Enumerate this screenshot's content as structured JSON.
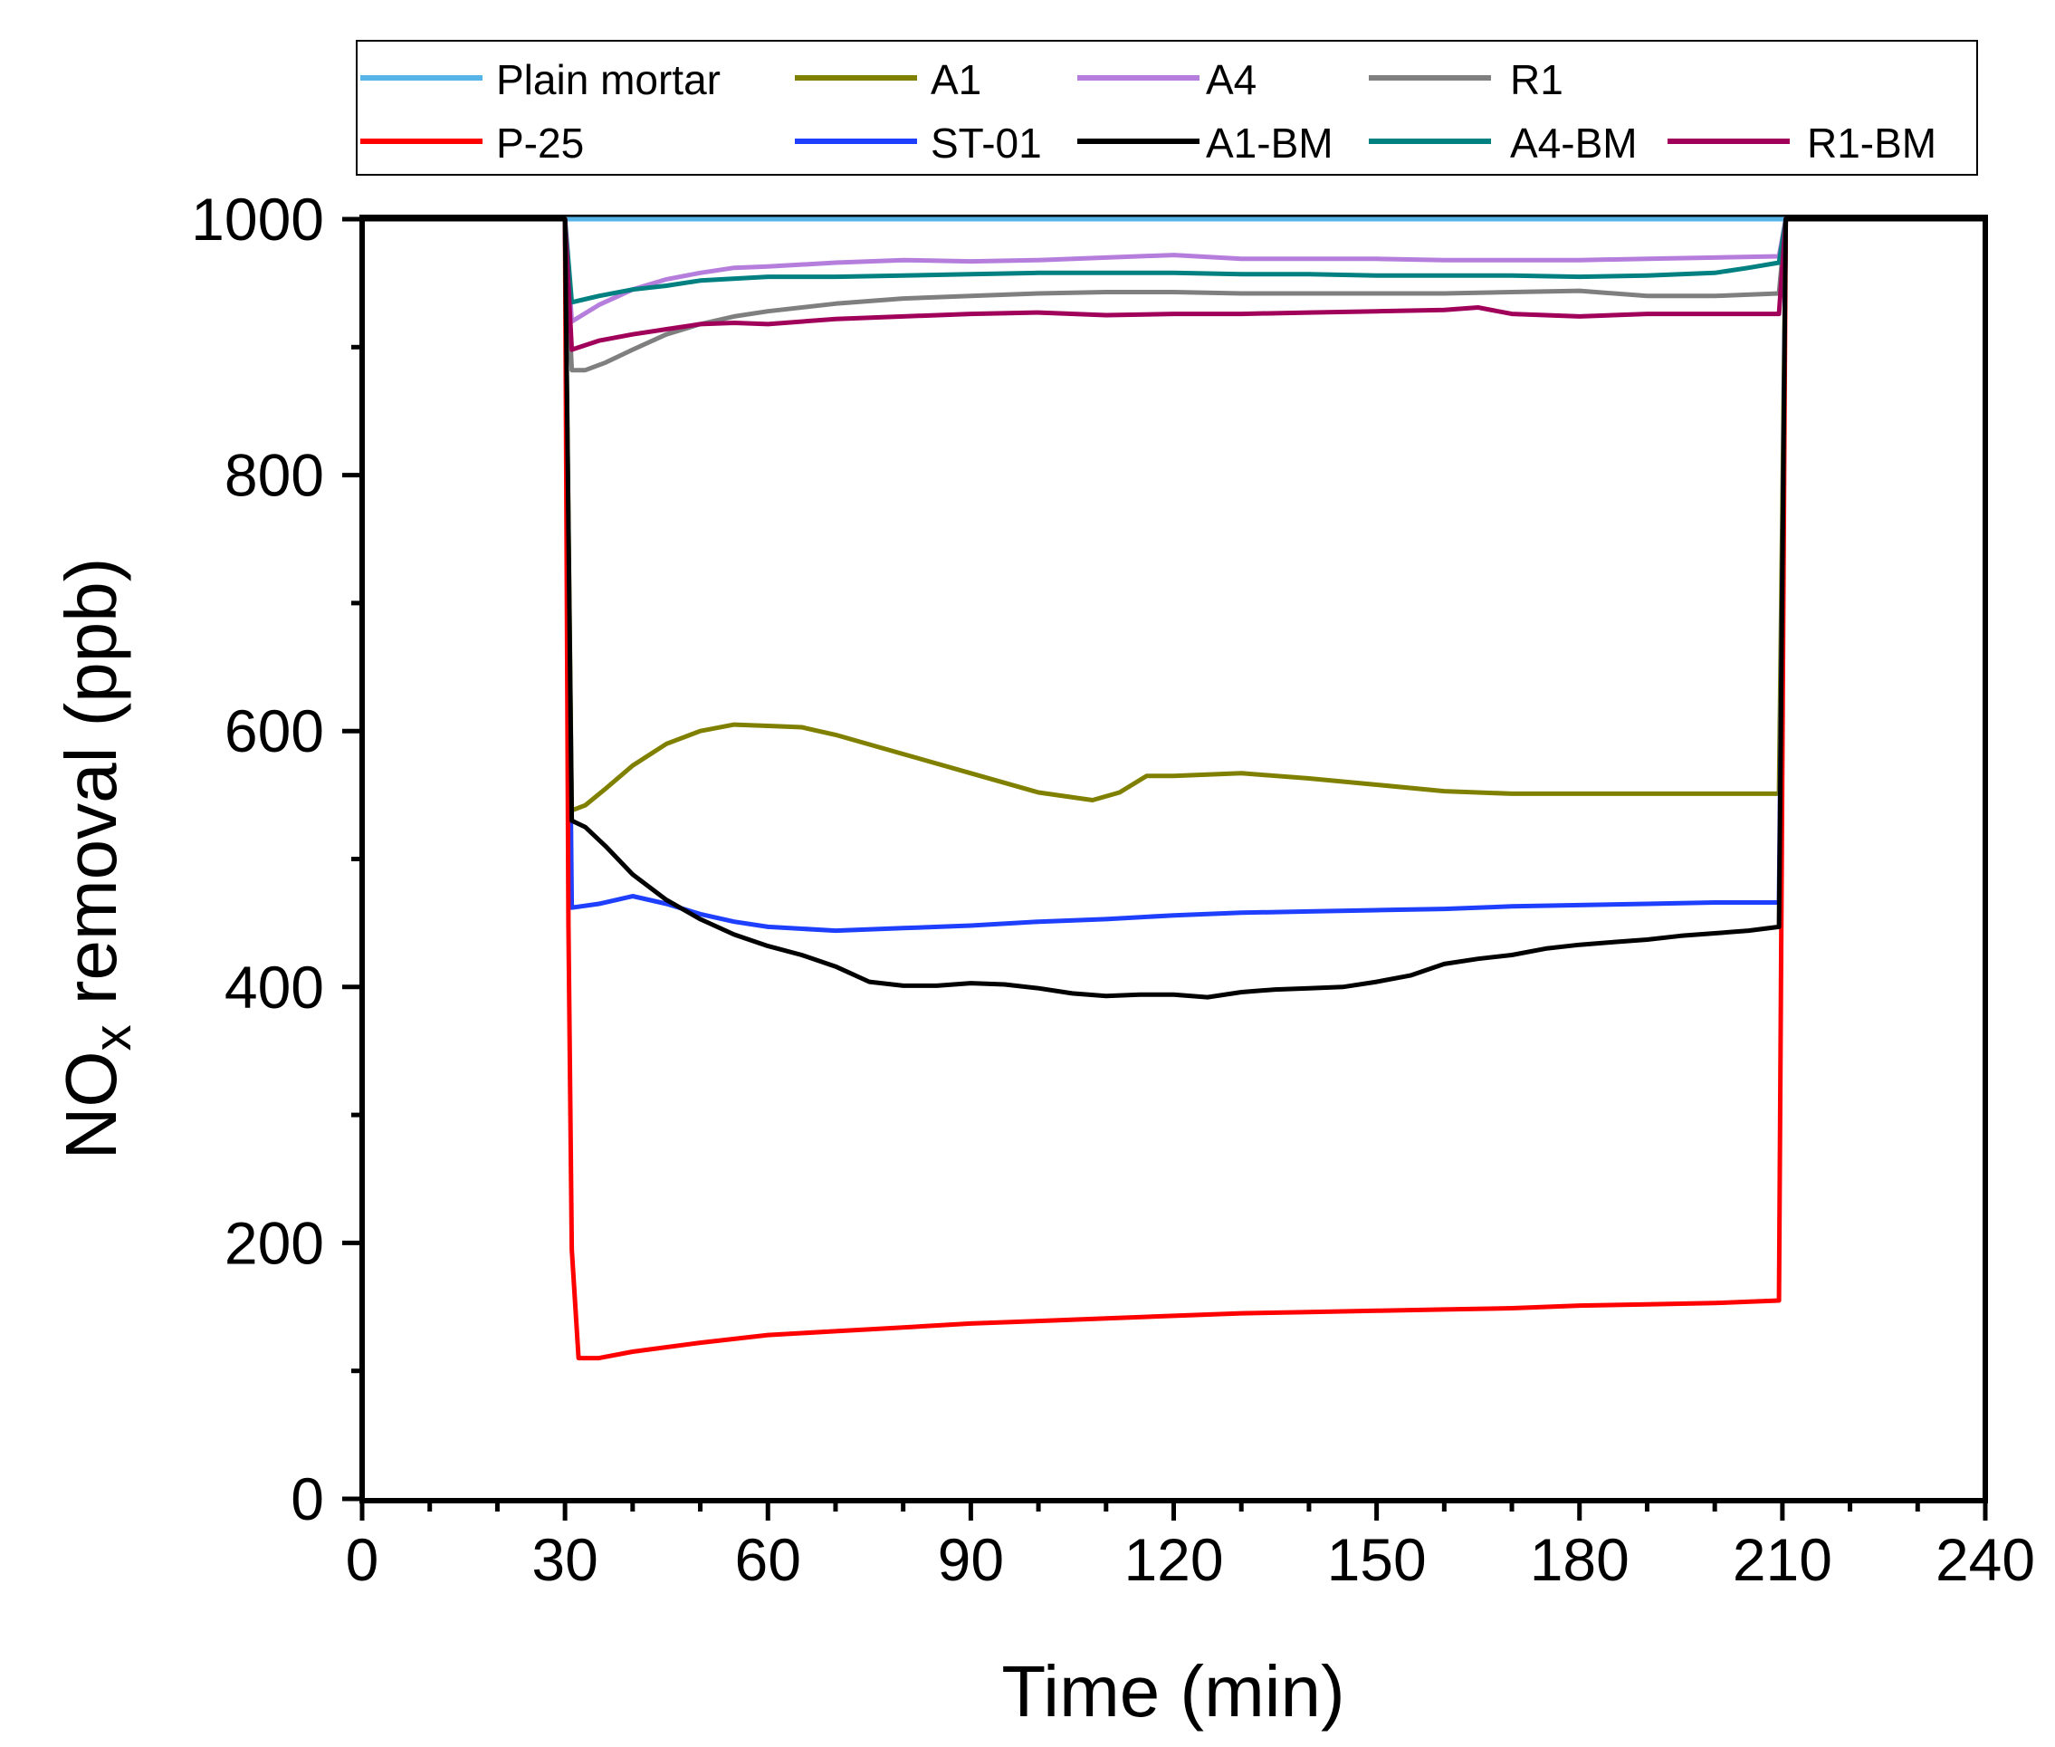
{
  "chart_data": {
    "type": "line",
    "title": "",
    "xlabel": "Time (min)",
    "ylabel": {
      "main": "NO",
      "sub": "x",
      "rest": " removal (ppb)"
    },
    "xlim": [
      0,
      240
    ],
    "ylim": [
      0,
      1000
    ],
    "xticks": [
      0,
      30,
      60,
      90,
      120,
      150,
      180,
      210,
      240
    ],
    "yticks": [
      0,
      200,
      400,
      600,
      800,
      1000
    ],
    "grid": false,
    "legend_position": "top",
    "series": [
      {
        "name": "Plain mortar",
        "color": "#56B4E9",
        "x": [
          0,
          30,
          31,
          60,
          120,
          180,
          209.5,
          210.5,
          240
        ],
        "y": [
          1000,
          1000,
          1000,
          1000,
          1000,
          1000,
          1000,
          1000,
          1000
        ]
      },
      {
        "name": "A1",
        "color": "#808000",
        "x": [
          0,
          30,
          31,
          33,
          36,
          40,
          45,
          50,
          55,
          60,
          65,
          70,
          80,
          90,
          100,
          108,
          112,
          116,
          120,
          130,
          140,
          150,
          160,
          170,
          180,
          190,
          200,
          209.5,
          210.5,
          240
        ],
        "y": [
          1000,
          1000,
          538,
          542,
          555,
          573,
          590,
          600,
          605,
          604,
          603,
          597,
          582,
          567,
          552,
          546,
          552,
          565,
          565,
          567,
          563,
          558,
          553,
          551,
          551,
          551,
          551,
          551,
          1000,
          1000
        ]
      },
      {
        "name": "A4",
        "color": "#B57EDC",
        "x": [
          0,
          30,
          31,
          35,
          40,
          45,
          50,
          55,
          60,
          70,
          80,
          90,
          100,
          110,
          120,
          130,
          140,
          150,
          160,
          170,
          180,
          190,
          200,
          209.5,
          210.5,
          240
        ],
        "y": [
          1000,
          1000,
          920,
          933,
          945,
          953,
          958,
          962,
          963,
          966,
          968,
          967,
          968,
          970,
          972,
          969,
          969,
          969,
          968,
          968,
          968,
          969,
          970,
          971,
          1000,
          1000
        ]
      },
      {
        "name": "R1",
        "color": "#7F7F7F",
        "x": [
          0,
          30,
          31,
          33,
          36,
          40,
          45,
          50,
          55,
          60,
          70,
          80,
          90,
          100,
          110,
          120,
          130,
          140,
          150,
          160,
          170,
          180,
          190,
          200,
          209.5,
          210.5,
          240
        ],
        "y": [
          1000,
          1000,
          882,
          882,
          888,
          898,
          910,
          918,
          924,
          928,
          934,
          938,
          940,
          942,
          943,
          943,
          942,
          942,
          942,
          942,
          943,
          944,
          940,
          940,
          942,
          1000,
          1000
        ]
      },
      {
        "name": "P-25",
        "color": "#FF0000",
        "x": [
          0,
          30,
          30.5,
          31,
          32,
          35,
          40,
          50,
          60,
          70,
          80,
          90,
          100,
          110,
          120,
          130,
          140,
          150,
          160,
          170,
          180,
          190,
          200,
          209.5,
          210.5,
          240
        ],
        "y": [
          1000,
          1000,
          450,
          195,
          110,
          110,
          115,
          122,
          128,
          131,
          134,
          137,
          139,
          141,
          143,
          145,
          146,
          147,
          148,
          149,
          151,
          152,
          153,
          155,
          1000,
          1000
        ]
      },
      {
        "name": "ST-01",
        "color": "#1F3FFF",
        "x": [
          0,
          30,
          31,
          35,
          40,
          45,
          50,
          55,
          60,
          70,
          80,
          90,
          100,
          110,
          120,
          130,
          140,
          150,
          160,
          170,
          180,
          190,
          200,
          209.5,
          210.5,
          240
        ],
        "y": [
          1000,
          1000,
          462,
          465,
          471,
          465,
          457,
          451,
          447,
          444,
          446,
          448,
          451,
          453,
          456,
          458,
          459,
          460,
          461,
          463,
          464,
          465,
          466,
          466,
          1000,
          1000
        ]
      },
      {
        "name": "A1-BM",
        "color": "#000000",
        "x": [
          0,
          30,
          31,
          33,
          36,
          40,
          45,
          50,
          55,
          60,
          65,
          70,
          75,
          80,
          85,
          90,
          95,
          100,
          105,
          110,
          115,
          120,
          125,
          130,
          135,
          140,
          145,
          150,
          155,
          160,
          165,
          170,
          175,
          180,
          185,
          190,
          195,
          200,
          205,
          209.5,
          210.5,
          240
        ],
        "y": [
          1000,
          1000,
          530,
          525,
          510,
          488,
          468,
          453,
          441,
          432,
          425,
          416,
          404,
          401,
          401,
          403,
          402,
          399,
          395,
          393,
          394,
          394,
          392,
          396,
          398,
          399,
          400,
          404,
          409,
          418,
          422,
          425,
          430,
          433,
          435,
          437,
          440,
          442,
          444,
          447,
          1000,
          1000
        ]
      },
      {
        "name": "A4-BM",
        "color": "#008080",
        "x": [
          0,
          30,
          31,
          35,
          40,
          45,
          50,
          60,
          70,
          80,
          90,
          100,
          110,
          120,
          130,
          140,
          150,
          160,
          170,
          180,
          190,
          200,
          205,
          209.5,
          210.5,
          240
        ],
        "y": [
          1000,
          1000,
          935,
          940,
          945,
          948,
          952,
          955,
          955,
          956,
          957,
          958,
          958,
          958,
          957,
          957,
          956,
          956,
          956,
          955,
          956,
          958,
          962,
          966,
          1000,
          1000
        ]
      },
      {
        "name": "R1-BM",
        "color": "#A0005A",
        "x": [
          0,
          30,
          31,
          35,
          40,
          45,
          50,
          55,
          60,
          70,
          80,
          90,
          100,
          110,
          120,
          130,
          140,
          150,
          160,
          165,
          170,
          180,
          190,
          200,
          209.5,
          210.5,
          240
        ],
        "y": [
          1000,
          1000,
          898,
          905,
          910,
          914,
          918,
          919,
          918,
          922,
          924,
          926,
          927,
          925,
          926,
          926,
          927,
          928,
          929,
          931,
          926,
          924,
          926,
          926,
          926,
          1000,
          1000
        ]
      }
    ]
  }
}
